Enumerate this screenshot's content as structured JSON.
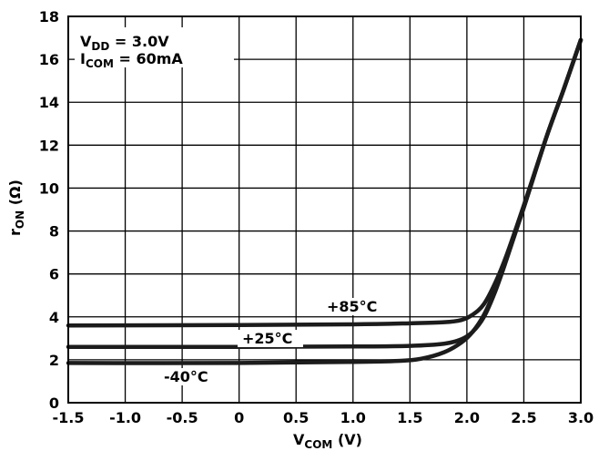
{
  "chart_data": {
    "type": "line",
    "xlabel": "V",
    "xlabel_sub": "COM",
    "xlabel_unit": " (V)",
    "ylabel": "r",
    "ylabel_sub": "ON",
    "ylabel_unit": " (Ω)",
    "xlim": [
      -1.5,
      3.0
    ],
    "ylim": [
      0,
      18
    ],
    "xticks": [
      -1.5,
      -1.0,
      -0.5,
      0,
      0.5,
      1.0,
      1.5,
      2.0,
      2.5,
      3.0
    ],
    "xtick_labels": [
      "-1.5",
      "-1.0",
      "-0.5",
      "0",
      "0.5",
      "1.0",
      "1.5",
      "2.0",
      "2.5",
      "3.0"
    ],
    "yticks": [
      0,
      2,
      4,
      6,
      8,
      10,
      12,
      14,
      16,
      18
    ],
    "ytick_labels": [
      "0",
      "2",
      "4",
      "6",
      "8",
      "10",
      "12",
      "14",
      "16",
      "18"
    ],
    "grid": true,
    "conditions": [
      {
        "main": "V",
        "sub": "DD",
        "rest": " = 3.0V"
      },
      {
        "main": "I",
        "sub": "COM",
        "rest": " = 60mA"
      }
    ],
    "series": [
      {
        "name": "+85°C",
        "x": [
          -1.5,
          0.0,
          1.0,
          1.5,
          1.8,
          1.95,
          2.05,
          2.15,
          2.25,
          2.35,
          2.5,
          2.7,
          2.85,
          3.0
        ],
        "y": [
          3.6,
          3.62,
          3.65,
          3.7,
          3.75,
          3.85,
          4.1,
          4.6,
          5.6,
          6.9,
          9.2,
          12.4,
          14.6,
          16.9
        ]
      },
      {
        "name": "+25°C",
        "x": [
          -1.5,
          0.0,
          1.0,
          1.5,
          1.8,
          1.95,
          2.05,
          2.15,
          2.25,
          2.35,
          2.5,
          2.7,
          2.85,
          3.0
        ],
        "y": [
          2.6,
          2.6,
          2.62,
          2.65,
          2.75,
          2.95,
          3.3,
          4.0,
          5.2,
          6.7,
          9.1,
          12.4,
          14.6,
          16.9
        ]
      },
      {
        "name": "-40°C",
        "x": [
          -1.5,
          0.0,
          1.0,
          1.4,
          1.6,
          1.8,
          1.95,
          2.05,
          2.15,
          2.25,
          2.35,
          2.5,
          2.7,
          2.85,
          3.0
        ],
        "y": [
          1.85,
          1.85,
          1.9,
          1.95,
          2.05,
          2.35,
          2.8,
          3.3,
          4.1,
          5.3,
          6.8,
          9.1,
          12.4,
          14.6,
          16.9
        ]
      }
    ]
  }
}
